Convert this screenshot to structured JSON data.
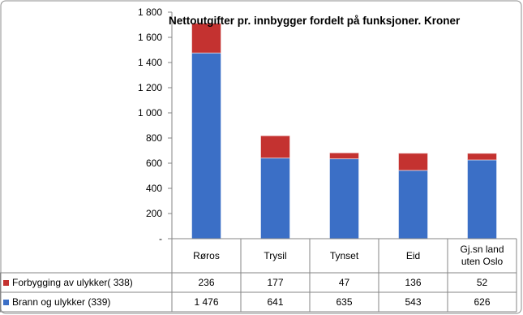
{
  "chart_data": {
    "type": "stacked-bar",
    "title": "Nettoutgifter pr. innbygger fordelt på funksjoner. Kroner",
    "categories": [
      "Røros",
      "Trysil",
      "Tynset",
      "Eid",
      "Gj.sn land\nuten Oslo"
    ],
    "series": [
      {
        "name": "Forbygging av ulykker( 338)",
        "color": "#c43230",
        "values": [
          236,
          177,
          47,
          136,
          52
        ]
      },
      {
        "name": "Brann og ulykker (339)",
        "color": "#3b6fc6",
        "values": [
          1476,
          641,
          635,
          543,
          626
        ],
        "value_labels": [
          "1 476",
          "641",
          "635",
          "543",
          "626"
        ]
      }
    ],
    "ylim": [
      0,
      1800
    ],
    "yticks": [
      {
        "value": 0,
        "label": "-"
      },
      200,
      400,
      600,
      800,
      {
        "value": 1000,
        "label": "1 000"
      },
      {
        "value": 1200,
        "label": "1 200"
      },
      {
        "value": 1400,
        "label": "1 400"
      },
      {
        "value": 1600,
        "label": "1 600"
      },
      {
        "value": 1800,
        "label": "1 800"
      }
    ],
    "grid": false
  }
}
